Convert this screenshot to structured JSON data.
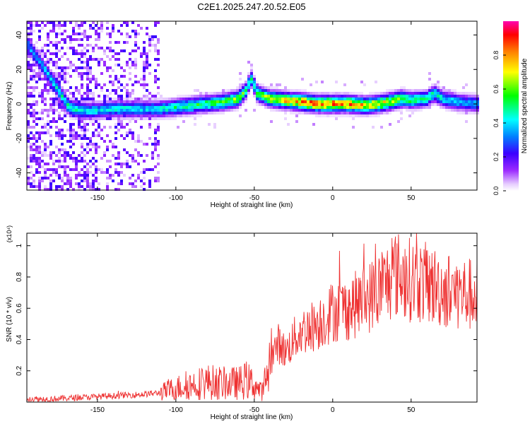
{
  "figure_title": "C2E1.2025.247.20.52.E05",
  "chart_data": [
    {
      "type": "heatmap",
      "title": "C2E1.2025.247.20.52.E05",
      "xlabel": "Height of straight line (km)",
      "ylabel": "Frequency (Hz)",
      "xlim": [
        -195,
        92
      ],
      "ylim": [
        -50,
        48
      ],
      "xticks": [
        -150,
        -100,
        -50,
        0,
        50
      ],
      "yticks": [
        -40,
        -20,
        0,
        20,
        40
      ],
      "colorbar": {
        "label": "Normalized spectral amplitude",
        "range": [
          0,
          1
        ],
        "ticks": [
          "0.0",
          "0.2",
          "0.4",
          "0.6",
          "0.8"
        ],
        "tick_values": [
          0.0,
          0.2,
          0.4,
          0.6,
          0.8
        ],
        "colors": [
          "#ffffff",
          "#e6ccff",
          "#9c2bff",
          "#3b00ff",
          "#0080ff",
          "#00ffff",
          "#00ff00",
          "#ffff00",
          "#ff8000",
          "#ff0000",
          "#ff00b0"
        ]
      },
      "ridge": {
        "x": [
          -195,
          -185,
          -175,
          -168,
          -160,
          -150,
          -140,
          -130,
          -120,
          -110,
          -100,
          -90,
          -80,
          -70,
          -60,
          -55,
          -52,
          -48,
          -40,
          -30,
          -20,
          -10,
          0,
          10,
          20,
          30,
          40,
          45,
          50,
          60,
          65,
          70,
          80,
          92
        ],
        "freq": [
          35,
          22,
          8,
          -2,
          -4,
          -4,
          -3,
          -3,
          -3,
          -3,
          -2,
          -1,
          0,
          1,
          3,
          8,
          15,
          6,
          3,
          2,
          1,
          0,
          0,
          0,
          -1,
          0,
          2,
          3,
          2,
          3,
          6,
          3,
          1,
          0
        ],
        "amplitude": [
          0.35,
          0.4,
          0.45,
          0.5,
          0.45,
          0.42,
          0.45,
          0.45,
          0.4,
          0.45,
          0.5,
          0.55,
          0.55,
          0.6,
          0.65,
          0.55,
          0.5,
          0.6,
          0.7,
          0.8,
          0.88,
          0.92,
          0.9,
          0.88,
          0.8,
          0.75,
          0.7,
          0.6,
          0.55,
          0.5,
          0.5,
          0.45,
          0.4,
          0.38
        ]
      }
    },
    {
      "type": "line",
      "xlabel": "Height of straight line (km)",
      "ylabel": "SNR (10 * v/v)",
      "y_multiplier": "(x10⁴)",
      "xlim": [
        -195,
        92
      ],
      "ylim": [
        0,
        1.08
      ],
      "xticks": [
        -150,
        -100,
        -50,
        0,
        50
      ],
      "yticks": [
        0.2,
        0.4,
        0.6,
        0.8,
        1.0
      ],
      "series": [
        {
          "name": "SNR",
          "color": "#ee3030",
          "x": [
            -195,
            -180,
            -160,
            -140,
            -120,
            -110,
            -100,
            -90,
            -80,
            -70,
            -60,
            -55,
            -50,
            -45,
            -40,
            -35,
            -30,
            -25,
            -20,
            -10,
            0,
            10,
            20,
            30,
            40,
            50,
            60,
            70,
            80,
            92
          ],
          "y": [
            0.02,
            0.02,
            0.03,
            0.04,
            0.05,
            0.06,
            0.09,
            0.11,
            0.13,
            0.12,
            0.12,
            0.14,
            0.11,
            0.06,
            0.25,
            0.38,
            0.32,
            0.4,
            0.45,
            0.5,
            0.58,
            0.6,
            0.65,
            0.72,
            0.82,
            0.78,
            0.76,
            0.72,
            0.7,
            0.68
          ]
        }
      ]
    }
  ]
}
